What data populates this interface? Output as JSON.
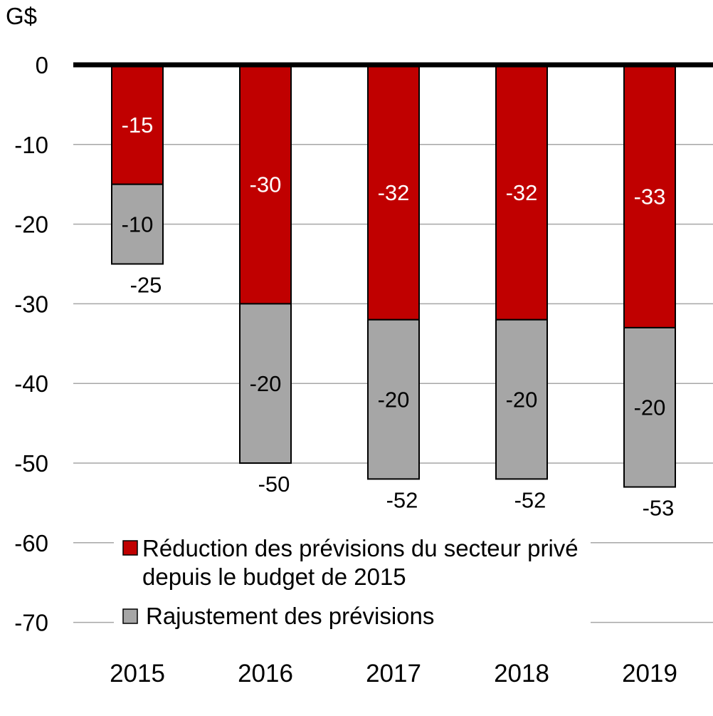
{
  "chart_data": {
    "type": "bar",
    "stacked": true,
    "unit_label": "G$",
    "categories": [
      "2015",
      "2016",
      "2017",
      "2018",
      "2019"
    ],
    "series": [
      {
        "name": "Réduction des prévisions du secteur privé depuis le budget de 2015",
        "legend_lines": [
          "Réduction des prévisions du secteur privé",
          "depuis le budget de 2015"
        ],
        "values": [
          -15,
          -30,
          -32,
          -32,
          -33
        ],
        "labels": [
          "-15",
          "-30",
          "-32",
          "-32",
          "-33"
        ],
        "color": "#c00000",
        "label_color": "#ffffff"
      },
      {
        "name": "Rajustement des prévisions",
        "legend_lines": [
          "Rajustement des prévisions"
        ],
        "values": [
          -10,
          -20,
          -20,
          -20,
          -20
        ],
        "labels": [
          "-10",
          "-20",
          "-20",
          "-20",
          "-20"
        ],
        "color": "#a6a6a6",
        "label_color": "#000000"
      }
    ],
    "totals": [
      -25,
      -50,
      -52,
      -52,
      -53
    ],
    "total_labels": [
      "-25",
      "-50",
      "-52",
      "-52",
      "-53"
    ],
    "ylim": [
      -70,
      0
    ],
    "yticks": [
      0,
      -10,
      -20,
      -30,
      -40,
      -50,
      -60,
      -70
    ],
    "ytick_labels": [
      "0",
      "-10",
      "-20",
      "-30",
      "-40",
      "-50",
      "-60",
      "-70"
    ],
    "grid": true,
    "legend_position": "bottom, inside plot"
  }
}
